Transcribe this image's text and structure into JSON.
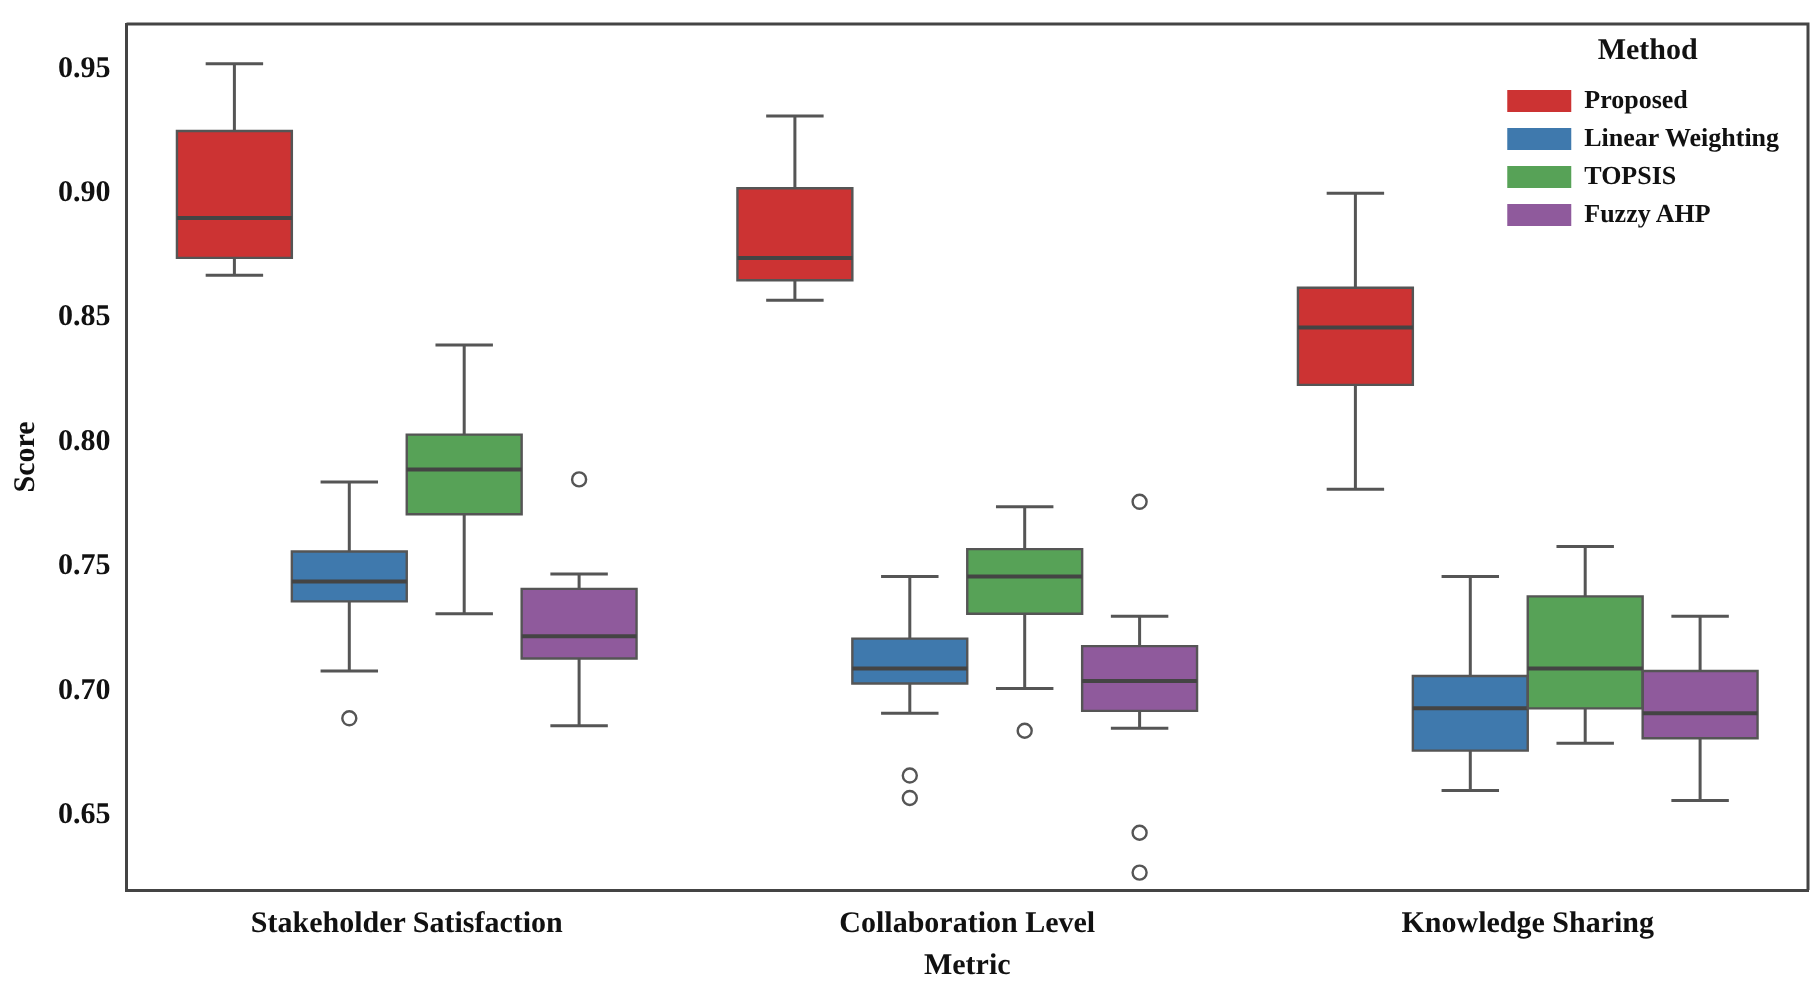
{
  "chart_data": {
    "type": "box",
    "xlabel": "Metric",
    "ylabel": "Score",
    "legend_title": "Method",
    "legend": "top right",
    "grid": false,
    "categories": [
      "Stakeholder Satisfaction",
      "Collaboration Level",
      "Knowledge Sharing"
    ],
    "ylim": [
      0.62,
      0.968
    ],
    "yticks": [
      0.65,
      {
        "value": 0.7,
        "label": "0.70"
      },
      0.75,
      {
        "value": 0.8,
        "label": "0.80"
      },
      0.85,
      {
        "value": 0.9,
        "label": "0.90"
      },
      0.95
    ],
    "series": [
      {
        "name": "Proposed",
        "color": "#cc3333",
        "boxes": [
          {
            "low": 0.867,
            "q1": 0.874,
            "median": 0.89,
            "q3": 0.925,
            "high": 0.952
          },
          {
            "low": 0.857,
            "q1": 0.865,
            "median": 0.874,
            "q3": 0.902,
            "high": 0.931
          },
          {
            "low": 0.781,
            "q1": 0.823,
            "median": 0.846,
            "q3": 0.862,
            "high": 0.9
          }
        ]
      },
      {
        "name": "Linear Weighting",
        "color": "#3f79ad",
        "boxes": [
          {
            "low": 0.708,
            "q1": 0.736,
            "median": 0.744,
            "q3": 0.756,
            "high": 0.784,
            "outliers": [
              0.689
            ]
          },
          {
            "low": 0.691,
            "q1": 0.703,
            "median": 0.709,
            "q3": 0.721,
            "high": 0.746,
            "outliers": [
              0.666,
              0.657
            ]
          },
          {
            "low": 0.66,
            "q1": 0.676,
            "median": 0.693,
            "q3": 0.706,
            "high": 0.746
          }
        ]
      },
      {
        "name": "TOPSIS",
        "color": "#57a257",
        "boxes": [
          {
            "low": 0.731,
            "q1": 0.771,
            "median": 0.789,
            "q3": 0.803,
            "high": 0.839
          },
          {
            "low": 0.701,
            "q1": 0.731,
            "median": 0.746,
            "q3": 0.757,
            "high": 0.774,
            "outliers": [
              0.684
            ]
          },
          {
            "low": 0.679,
            "q1": 0.693,
            "median": 0.709,
            "q3": 0.738,
            "high": 0.758
          }
        ]
      },
      {
        "name": "Fuzzy AHP",
        "color": "#8f5a9c",
        "boxes": [
          {
            "low": 0.686,
            "q1": 0.713,
            "median": 0.722,
            "q3": 0.741,
            "high": 0.747,
            "outliers": [
              0.785
            ]
          },
          {
            "low": 0.685,
            "q1": 0.692,
            "median": 0.704,
            "q3": 0.718,
            "high": 0.73,
            "outliers": [
              0.776,
              0.643,
              0.627
            ]
          },
          {
            "low": 0.656,
            "q1": 0.681,
            "median": 0.691,
            "q3": 0.708,
            "high": 0.73
          }
        ]
      }
    ]
  }
}
